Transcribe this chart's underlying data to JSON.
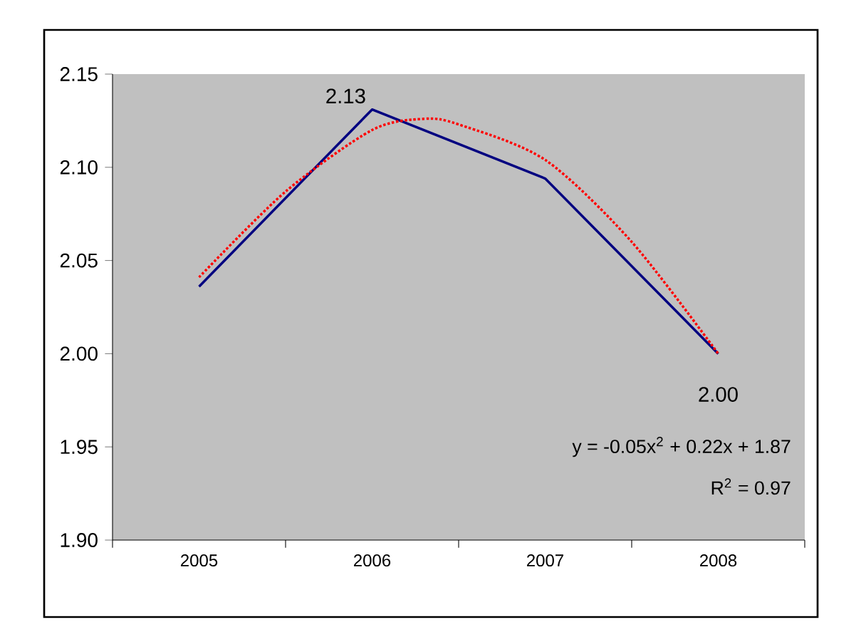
{
  "chart_data": {
    "type": "line",
    "x": [
      2005,
      2006,
      2007,
      2008
    ],
    "xlim": [
      2004.5,
      2008.5
    ],
    "xticks": [
      {
        "value": 2004.5,
        "label": null
      },
      2005,
      {
        "value": 2005.5,
        "label": null
      },
      2006,
      {
        "value": 2006.5,
        "label": null
      },
      2007,
      {
        "value": 2007.5,
        "label": null
      },
      2008,
      {
        "value": 2008.5,
        "label": null
      }
    ],
    "ylim": [
      1.9,
      2.15
    ],
    "yticks": [
      {
        "value": 1.9,
        "label": "1.90"
      },
      {
        "value": 1.95,
        "label": "1.95"
      },
      {
        "value": 2.0,
        "label": "2.00"
      },
      {
        "value": 2.05,
        "label": "2.05"
      },
      {
        "value": 2.1,
        "label": "2.10"
      },
      {
        "value": 2.15,
        "label": "2.15"
      }
    ],
    "marker": "none",
    "series": [
      {
        "color": "#000080",
        "line_style": "solid",
        "values": [
          2.036,
          2.131,
          2.094,
          2.0
        ],
        "value_labels": [
          null,
          "2.13",
          null,
          "2.00"
        ]
      },
      {
        "type": "line",
        "color": "#ff0000",
        "line_style": "dotted",
        "x": [
          2005,
          2005.5,
          2006,
          2006.3,
          2006.5,
          2007,
          2007.5,
          2008
        ],
        "values": [
          2.041,
          2.087,
          2.12,
          2.126,
          2.123,
          2.104,
          2.06,
          2.0
        ]
      }
    ],
    "annotations": [
      "y = -0.05x$^{2}$ + 0.22x + 1.87",
      "R$^{2}$ = 0.97"
    ]
  }
}
